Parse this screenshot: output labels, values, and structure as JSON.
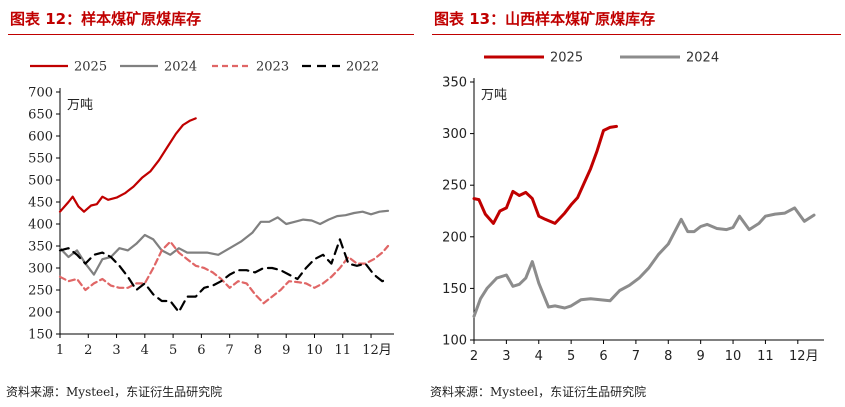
{
  "chart_data": [
    {
      "type": "line",
      "title": "图表 12：样本煤矿原煤库存",
      "ylabel": "万吨",
      "xlabel": "",
      "x_ticks": [
        "1",
        "2",
        "3",
        "4",
        "5",
        "6",
        "7",
        "8",
        "9",
        "10",
        "11",
        "12月"
      ],
      "xlim": [
        1,
        12.6
      ],
      "ylim": [
        150,
        700
      ],
      "y_ticks": [
        150,
        200,
        250,
        300,
        350,
        400,
        450,
        500,
        550,
        600,
        650,
        700
      ],
      "grid": false,
      "legend_position": "top",
      "source": "资料来源：Mysteel，东证衍生品研究院",
      "series": [
        {
          "name": "2025",
          "color": "#c00000",
          "style": "solid",
          "x": [
            1.0,
            1.3,
            1.45,
            1.65,
            1.85,
            2.1,
            2.3,
            2.5,
            2.7,
            3.0,
            3.3,
            3.6,
            3.9,
            4.2,
            4.5,
            4.8,
            5.1,
            5.35,
            5.6,
            5.8
          ],
          "y": [
            428,
            450,
            462,
            440,
            428,
            442,
            445,
            462,
            455,
            460,
            470,
            485,
            505,
            520,
            545,
            575,
            605,
            625,
            635,
            640
          ]
        },
        {
          "name": "2024",
          "color": "#808080",
          "style": "solid",
          "x": [
            1.0,
            1.3,
            1.6,
            1.9,
            2.2,
            2.5,
            2.8,
            3.1,
            3.4,
            3.7,
            4.0,
            4.3,
            4.6,
            4.9,
            5.2,
            5.5,
            5.8,
            6.2,
            6.6,
            7.0,
            7.4,
            7.8,
            8.1,
            8.4,
            8.7,
            9.0,
            9.3,
            9.6,
            9.9,
            10.2,
            10.5,
            10.8,
            11.1,
            11.4,
            11.7,
            12.0,
            12.3,
            12.6
          ],
          "y": [
            345,
            325,
            340,
            310,
            285,
            320,
            325,
            345,
            340,
            355,
            375,
            365,
            340,
            330,
            345,
            335,
            335,
            335,
            330,
            345,
            360,
            380,
            405,
            405,
            415,
            400,
            405,
            410,
            408,
            400,
            410,
            418,
            420,
            425,
            428,
            422,
            428,
            430
          ]
        },
        {
          "name": "2023",
          "color": "#e06666",
          "style": "dashed",
          "x": [
            1.0,
            1.3,
            1.6,
            1.9,
            2.2,
            2.5,
            2.8,
            3.1,
            3.4,
            3.7,
            4.0,
            4.3,
            4.6,
            4.9,
            5.2,
            5.5,
            5.8,
            6.1,
            6.4,
            6.7,
            7.0,
            7.3,
            7.6,
            7.9,
            8.2,
            8.5,
            8.8,
            9.1,
            9.4,
            9.7,
            10.0,
            10.3,
            10.6,
            10.9,
            11.2,
            11.5,
            11.8,
            12.1,
            12.4,
            12.6
          ],
          "y": [
            280,
            270,
            275,
            250,
            265,
            275,
            260,
            255,
            255,
            265,
            265,
            300,
            340,
            360,
            335,
            320,
            305,
            300,
            290,
            275,
            255,
            270,
            265,
            240,
            220,
            235,
            250,
            270,
            268,
            265,
            255,
            265,
            280,
            300,
            325,
            310,
            310,
            320,
            335,
            350
          ]
        },
        {
          "name": "2022",
          "color": "#000000",
          "style": "dashed",
          "x": [
            1.0,
            1.3,
            1.6,
            1.9,
            2.2,
            2.5,
            2.8,
            3.1,
            3.4,
            3.7,
            4.0,
            4.3,
            4.6,
            4.9,
            5.2,
            5.5,
            5.8,
            6.1,
            6.4,
            6.7,
            7.0,
            7.3,
            7.6,
            7.9,
            8.2,
            8.5,
            8.8,
            9.1,
            9.4,
            9.7,
            10.0,
            10.3,
            10.6,
            10.9,
            11.2,
            11.5,
            11.8,
            12.1,
            12.4,
            12.6
          ],
          "y": [
            340,
            345,
            330,
            310,
            330,
            335,
            325,
            305,
            280,
            250,
            265,
            240,
            225,
            225,
            200,
            235,
            235,
            255,
            260,
            270,
            285,
            295,
            295,
            290,
            300,
            300,
            295,
            285,
            275,
            300,
            320,
            330,
            310,
            365,
            310,
            305,
            310,
            285,
            270,
            275
          ]
        }
      ]
    },
    {
      "type": "line",
      "title": "图表 13：山西样本煤矿原煤库存",
      "ylabel": "万吨",
      "xlabel": "",
      "x_ticks": [
        "2",
        "3",
        "4",
        "5",
        "6",
        "7",
        "8",
        "9",
        "10",
        "11",
        "12月"
      ],
      "xlim": [
        2,
        12.5
      ],
      "ylim": [
        100,
        350
      ],
      "y_ticks": [
        100,
        150,
        200,
        250,
        300,
        350
      ],
      "grid": false,
      "legend_position": "top",
      "source": "资料来源：Mysteel，东证衍生品研究院",
      "series": [
        {
          "name": "2025",
          "color": "#c00000",
          "style": "solid",
          "x": [
            2.0,
            2.15,
            2.35,
            2.6,
            2.8,
            3.0,
            3.2,
            3.4,
            3.6,
            3.8,
            4.0,
            4.2,
            4.5,
            4.8,
            5.0,
            5.2,
            5.4,
            5.6,
            5.8,
            6.0,
            6.2,
            6.4
          ],
          "y": [
            237,
            236,
            222,
            213,
            225,
            228,
            244,
            240,
            243,
            237,
            220,
            217,
            213,
            223,
            231,
            238,
            252,
            266,
            283,
            303,
            306,
            307
          ]
        },
        {
          "name": "2024",
          "color": "#8c8c8c",
          "style": "solid",
          "x": [
            2.0,
            2.2,
            2.4,
            2.7,
            3.0,
            3.2,
            3.4,
            3.6,
            3.8,
            4.0,
            4.3,
            4.5,
            4.8,
            5.0,
            5.3,
            5.6,
            5.9,
            6.2,
            6.5,
            6.8,
            7.1,
            7.4,
            7.7,
            8.0,
            8.2,
            8.4,
            8.6,
            8.8,
            9.0,
            9.2,
            9.5,
            9.8,
            10.0,
            10.2,
            10.5,
            10.8,
            11.0,
            11.3,
            11.6,
            11.9,
            12.2,
            12.5
          ],
          "y": [
            123,
            140,
            150,
            160,
            163,
            152,
            154,
            160,
            176,
            155,
            132,
            133,
            131,
            133,
            139,
            140,
            139,
            138,
            148,
            153,
            160,
            170,
            183,
            193,
            205,
            217,
            205,
            205,
            210,
            212,
            208,
            207,
            209,
            220,
            207,
            213,
            220,
            222,
            223,
            228,
            215,
            221
          ]
        }
      ]
    }
  ]
}
